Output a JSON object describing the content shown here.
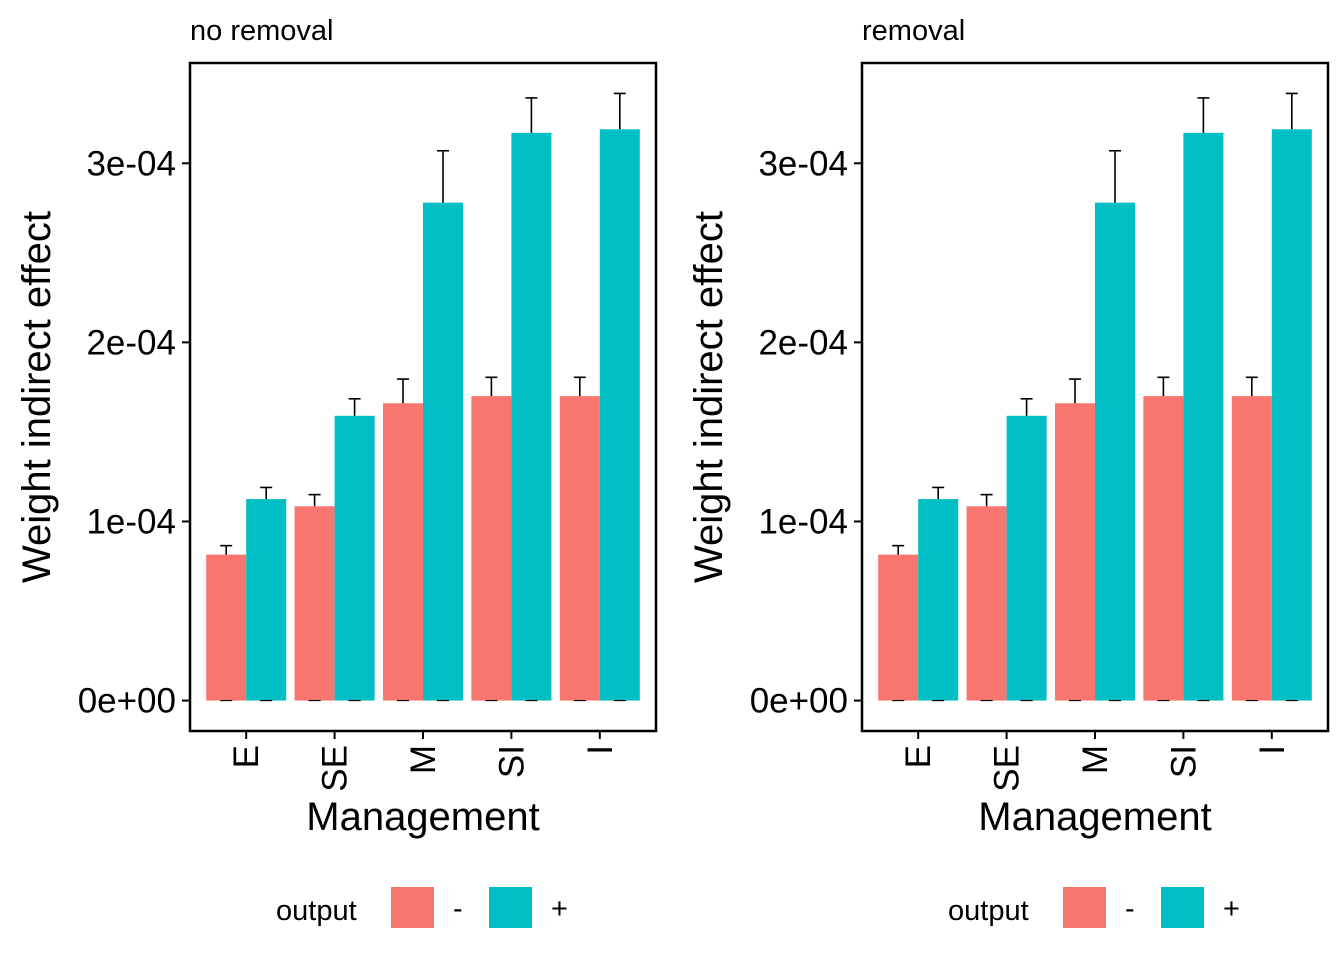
{
  "legend": {
    "title": "output",
    "items": [
      {
        "label": "-",
        "color": "#F8766D"
      },
      {
        "label": "+",
        "color": "#00BFC4"
      }
    ]
  },
  "chart_data": [
    {
      "type": "bar",
      "title": "no removal",
      "xlabel": "Management",
      "ylabel": "Weight indirect effect",
      "categories": [
        "E",
        "SE",
        "M",
        "SI",
        "I"
      ],
      "ylim": [
        -1.7e-05,
        0.000356
      ],
      "yticks": [
        0,
        0.0001,
        0.0002,
        0.0003
      ],
      "ytick_labels": [
        "0e+00",
        "1e-04",
        "2e-04",
        "3e-04"
      ],
      "grid": false,
      "legend_position": "bottom",
      "series": [
        {
          "name": "-",
          "color": "#F8766D",
          "values": [
            8.15e-05,
            0.0001085,
            0.000166,
            0.00017,
            0.00017
          ],
          "errors": [
            5e-06,
            6.5e-06,
            1.35e-05,
            1.05e-05,
            1.05e-05
          ]
        },
        {
          "name": "+",
          "color": "#00BFC4",
          "values": [
            0.0001125,
            0.000159,
            0.000278,
            0.000317,
            0.000319
          ],
          "errors": [
            6.5e-06,
            9.5e-06,
            2.9e-05,
            1.95e-05,
            2e-05
          ]
        }
      ]
    },
    {
      "type": "bar",
      "title": "removal",
      "xlabel": "Management",
      "ylabel": "Weight indirect effect",
      "categories": [
        "E",
        "SE",
        "M",
        "SI",
        "I"
      ],
      "ylim": [
        -1.7e-05,
        0.000356
      ],
      "yticks": [
        0,
        0.0001,
        0.0002,
        0.0003
      ],
      "ytick_labels": [
        "0e+00",
        "1e-04",
        "2e-04",
        "3e-04"
      ],
      "grid": false,
      "legend_position": "bottom",
      "series": [
        {
          "name": "-",
          "color": "#F8766D",
          "values": [
            8.15e-05,
            0.0001085,
            0.000166,
            0.00017,
            0.00017
          ],
          "errors": [
            5e-06,
            6.5e-06,
            1.35e-05,
            1.05e-05,
            1.05e-05
          ]
        },
        {
          "name": "+",
          "color": "#00BFC4",
          "values": [
            0.0001125,
            0.000159,
            0.000278,
            0.000317,
            0.000319
          ],
          "errors": [
            6.5e-06,
            9.5e-06,
            2.9e-05,
            1.95e-05,
            2e-05
          ]
        }
      ]
    }
  ]
}
